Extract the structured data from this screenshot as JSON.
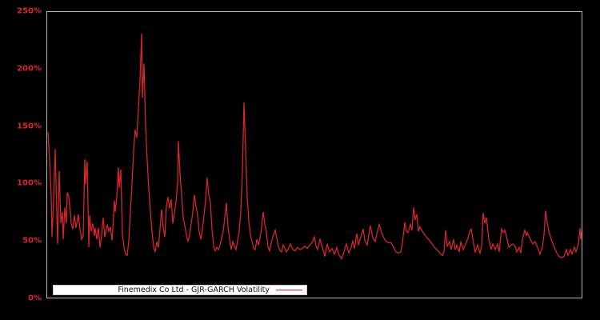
{
  "legend": {
    "label": "Finemedix Co Ltd - GJR-GARCH Volatility",
    "position": "lower left"
  },
  "colors": {
    "background": "#000000",
    "line": "#d6262b",
    "tick_label": "#d6262b",
    "plot_border": "#b8b8b8",
    "legend_background": "#ffffff",
    "legend_text": "#111111"
  },
  "chart_data": {
    "type": "line",
    "title": "",
    "xlabel": "",
    "ylabel": "",
    "x_axis_labels_visible": false,
    "grid": false,
    "ylim": [
      0,
      250
    ],
    "yticks": [
      {
        "value": 250,
        "label": "250%"
      },
      {
        "value": 200,
        "label": "200%"
      },
      {
        "value": 150,
        "label": "150%"
      },
      {
        "value": 100,
        "label": "100%"
      },
      {
        "value": 50,
        "label": "50%"
      },
      {
        "value": 0,
        "label": "0%"
      }
    ],
    "legend_position": "lower left",
    "series": [
      {
        "name": "Finemedix Co Ltd - GJR-GARCH Volatility",
        "color": "#d6262b",
        "unit": "percent",
        "points": [
          [
            1,
            145
          ],
          [
            3,
            120
          ],
          [
            5,
            88
          ],
          [
            6,
            53
          ],
          [
            8,
            86
          ],
          [
            10,
            130
          ],
          [
            11,
            101
          ],
          [
            12,
            74
          ],
          [
            13,
            47
          ],
          [
            15,
            111
          ],
          [
            17,
            65
          ],
          [
            19,
            75
          ],
          [
            20,
            51
          ],
          [
            22,
            79
          ],
          [
            24,
            65
          ],
          [
            25,
            92
          ],
          [
            27,
            88
          ],
          [
            29,
            75
          ],
          [
            30,
            65
          ],
          [
            32,
            60
          ],
          [
            34,
            72
          ],
          [
            36,
            61
          ],
          [
            39,
            73
          ],
          [
            40,
            65
          ],
          [
            43,
            51
          ],
          [
            45,
            54
          ],
          [
            47,
            121
          ],
          [
            48,
            99
          ],
          [
            50,
            119
          ],
          [
            52,
            44
          ],
          [
            53,
            72
          ],
          [
            55,
            58
          ],
          [
            57,
            65
          ],
          [
            59,
            54
          ],
          [
            60,
            61
          ],
          [
            62,
            51
          ],
          [
            64,
            61
          ],
          [
            66,
            44
          ],
          [
            68,
            55
          ],
          [
            70,
            70
          ],
          [
            72,
            53
          ],
          [
            75,
            64
          ],
          [
            77,
            58
          ],
          [
            79,
            62
          ],
          [
            81,
            50
          ],
          [
            82,
            60
          ],
          [
            84,
            85
          ],
          [
            85,
            75
          ],
          [
            87,
            88
          ],
          [
            89,
            114
          ],
          [
            90,
            96
          ],
          [
            92,
            112
          ],
          [
            94,
            55
          ],
          [
            96,
            44
          ],
          [
            98,
            38
          ],
          [
            100,
            37
          ],
          [
            102,
            50
          ],
          [
            104,
            75
          ],
          [
            106,
            100
          ],
          [
            108,
            128
          ],
          [
            110,
            147
          ],
          [
            112,
            140
          ],
          [
            114,
            165
          ],
          [
            116,
            190
          ],
          [
            118,
            231
          ],
          [
            119,
            175
          ],
          [
            121,
            205
          ],
          [
            123,
            150
          ],
          [
            125,
            120
          ],
          [
            127,
            95
          ],
          [
            129,
            75
          ],
          [
            131,
            58
          ],
          [
            133,
            44
          ],
          [
            135,
            40
          ],
          [
            137,
            49
          ],
          [
            139,
            44
          ],
          [
            141,
            60
          ],
          [
            143,
            77
          ],
          [
            145,
            62
          ],
          [
            147,
            53
          ],
          [
            149,
            80
          ],
          [
            151,
            88
          ],
          [
            153,
            78
          ],
          [
            155,
            86
          ],
          [
            157,
            65
          ],
          [
            159,
            74
          ],
          [
            161,
            84
          ],
          [
            163,
            100
          ],
          [
            164,
            137
          ],
          [
            166,
            108
          ],
          [
            168,
            90
          ],
          [
            170,
            70
          ],
          [
            172,
            63
          ],
          [
            174,
            55
          ],
          [
            176,
            49
          ],
          [
            178,
            55
          ],
          [
            180,
            65
          ],
          [
            182,
            75
          ],
          [
            184,
            90
          ],
          [
            186,
            80
          ],
          [
            188,
            72
          ],
          [
            190,
            58
          ],
          [
            192,
            51
          ],
          [
            194,
            60
          ],
          [
            196,
            72
          ],
          [
            198,
            85
          ],
          [
            200,
            105
          ],
          [
            202,
            90
          ],
          [
            204,
            83
          ],
          [
            206,
            60
          ],
          [
            208,
            45
          ],
          [
            210,
            41
          ],
          [
            212,
            44
          ],
          [
            214,
            42
          ],
          [
            216,
            46
          ],
          [
            218,
            52
          ],
          [
            220,
            58
          ],
          [
            222,
            70
          ],
          [
            224,
            83
          ],
          [
            226,
            62
          ],
          [
            228,
            51
          ],
          [
            230,
            42
          ],
          [
            232,
            49
          ],
          [
            234,
            45
          ],
          [
            236,
            42
          ],
          [
            238,
            50
          ],
          [
            240,
            58
          ],
          [
            242,
            75
          ],
          [
            244,
            110
          ],
          [
            246,
            171
          ],
          [
            248,
            130
          ],
          [
            250,
            88
          ],
          [
            252,
            67
          ],
          [
            254,
            55
          ],
          [
            256,
            49
          ],
          [
            258,
            43
          ],
          [
            260,
            42
          ],
          [
            262,
            51
          ],
          [
            264,
            46
          ],
          [
            266,
            52
          ],
          [
            268,
            62
          ],
          [
            270,
            75
          ],
          [
            272,
            64
          ],
          [
            274,
            58
          ],
          [
            276,
            44
          ],
          [
            278,
            41
          ],
          [
            280,
            48
          ],
          [
            282,
            53
          ],
          [
            285,
            59
          ],
          [
            287,
            52
          ],
          [
            289,
            45
          ],
          [
            291,
            41
          ],
          [
            293,
            40
          ],
          [
            295,
            46
          ],
          [
            297,
            43
          ],
          [
            299,
            40
          ],
          [
            301,
            42
          ],
          [
            304,
            47
          ],
          [
            307,
            42
          ],
          [
            310,
            41
          ],
          [
            313,
            44
          ],
          [
            316,
            42
          ],
          [
            319,
            43
          ],
          [
            322,
            45
          ],
          [
            325,
            43
          ],
          [
            328,
            46
          ],
          [
            331,
            48
          ],
          [
            334,
            53
          ],
          [
            336,
            45
          ],
          [
            338,
            42
          ],
          [
            341,
            51
          ],
          [
            344,
            44
          ],
          [
            347,
            36
          ],
          [
            350,
            47
          ],
          [
            353,
            40
          ],
          [
            356,
            43
          ],
          [
            359,
            38
          ],
          [
            362,
            44
          ],
          [
            365,
            37
          ],
          [
            368,
            34
          ],
          [
            371,
            40
          ],
          [
            374,
            47
          ],
          [
            377,
            39
          ],
          [
            380,
            44
          ],
          [
            382,
            50
          ],
          [
            384,
            43
          ],
          [
            387,
            56
          ],
          [
            389,
            46
          ],
          [
            392,
            53
          ],
          [
            395,
            60
          ],
          [
            397,
            50
          ],
          [
            400,
            46
          ],
          [
            402,
            55
          ],
          [
            404,
            63
          ],
          [
            407,
            52
          ],
          [
            410,
            49
          ],
          [
            412,
            56
          ],
          [
            415,
            64
          ],
          [
            418,
            57
          ],
          [
            421,
            52
          ],
          [
            424,
            49
          ],
          [
            427,
            48
          ],
          [
            430,
            48
          ],
          [
            433,
            44
          ],
          [
            436,
            40
          ],
          [
            439,
            39
          ],
          [
            442,
            40
          ],
          [
            444,
            48
          ],
          [
            447,
            66
          ],
          [
            449,
            58
          ],
          [
            451,
            57
          ],
          [
            454,
            64
          ],
          [
            456,
            59
          ],
          [
            458,
            79
          ],
          [
            460,
            68
          ],
          [
            462,
            73
          ],
          [
            464,
            58
          ],
          [
            466,
            62
          ],
          [
            469,
            58
          ],
          [
            472,
            55
          ],
          [
            475,
            52
          ],
          [
            478,
            50
          ],
          [
            481,
            47
          ],
          [
            484,
            44
          ],
          [
            487,
            42
          ],
          [
            490,
            40
          ],
          [
            492,
            38
          ],
          [
            494,
            37
          ],
          [
            496,
            40
          ],
          [
            498,
            59
          ],
          [
            500,
            45
          ],
          [
            503,
            49
          ],
          [
            505,
            42
          ],
          [
            508,
            51
          ],
          [
            510,
            42
          ],
          [
            512,
            46
          ],
          [
            515,
            40
          ],
          [
            517,
            49
          ],
          [
            520,
            42
          ],
          [
            523,
            47
          ],
          [
            526,
            52
          ],
          [
            528,
            58
          ],
          [
            530,
            60
          ],
          [
            533,
            47
          ],
          [
            535,
            40
          ],
          [
            538,
            46
          ],
          [
            541,
            39
          ],
          [
            543,
            45
          ],
          [
            545,
            74
          ],
          [
            547,
            65
          ],
          [
            549,
            70
          ],
          [
            552,
            51
          ],
          [
            555,
            42
          ],
          [
            557,
            47
          ],
          [
            560,
            42
          ],
          [
            563,
            47
          ],
          [
            565,
            40
          ],
          [
            568,
            60
          ],
          [
            570,
            57
          ],
          [
            572,
            59
          ],
          [
            575,
            51
          ],
          [
            577,
            44
          ],
          [
            580,
            46
          ],
          [
            582,
            47
          ],
          [
            585,
            45
          ],
          [
            587,
            40
          ],
          [
            590,
            44
          ],
          [
            592,
            39
          ],
          [
            594,
            51
          ],
          [
            597,
            59
          ],
          [
            599,
            54
          ],
          [
            600,
            57
          ],
          [
            602,
            54
          ],
          [
            604,
            51
          ],
          [
            607,
            47
          ],
          [
            610,
            49
          ],
          [
            614,
            42
          ],
          [
            616,
            38
          ],
          [
            619,
            44
          ],
          [
            621,
            55
          ],
          [
            623,
            76
          ],
          [
            625,
            66
          ],
          [
            627,
            58
          ],
          [
            630,
            51
          ],
          [
            634,
            44
          ],
          [
            637,
            39
          ],
          [
            640,
            36
          ],
          [
            643,
            35
          ],
          [
            646,
            36
          ],
          [
            649,
            42
          ],
          [
            651,
            37
          ],
          [
            654,
            42
          ],
          [
            656,
            38
          ],
          [
            659,
            44
          ],
          [
            661,
            40
          ],
          [
            664,
            47
          ],
          [
            666,
            61
          ],
          [
            667,
            51
          ],
          [
            668,
            58
          ],
          [
            669,
            49
          ]
        ]
      }
    ]
  }
}
